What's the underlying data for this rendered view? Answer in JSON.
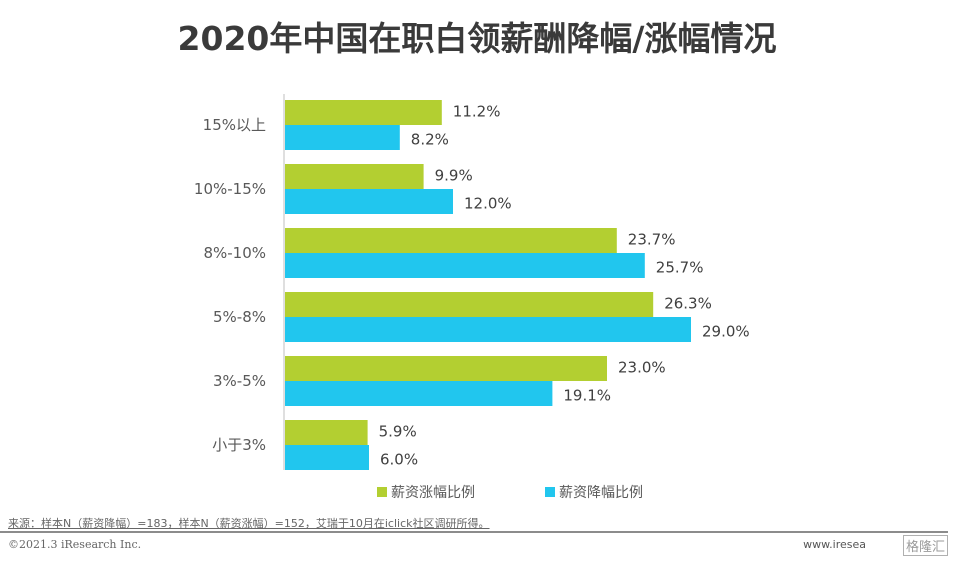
{
  "title": "2020年中国在职白领薪酬降幅/涨幅情况",
  "colors": {
    "increase": "#B3CF31",
    "decrease": "#21C6EE"
  },
  "chart_data": {
    "type": "bar",
    "orientation": "horizontal",
    "title": "2020年中国在职白领薪酬降幅/涨幅情况",
    "categories": [
      "15%以上",
      "10%-15%",
      "8%-10%",
      "5%-8%",
      "3%-5%",
      "小于3%"
    ],
    "series": [
      {
        "name": "薪资涨幅比例",
        "values": [
          11.2,
          9.9,
          23.7,
          26.3,
          23.0,
          5.9
        ],
        "labels": [
          "11.2%",
          "9.9%",
          "23.7%",
          "26.3%",
          "23.0%",
          "5.9%"
        ]
      },
      {
        "name": "薪资降幅比例",
        "values": [
          8.2,
          12.0,
          25.7,
          29.0,
          19.1,
          6.0
        ],
        "labels": [
          "8.2%",
          "12.0%",
          "25.7%",
          "29.0%",
          "19.1%",
          "6.0%"
        ]
      }
    ],
    "xlabel": "",
    "ylabel": "",
    "xlim": [
      0,
      35
    ],
    "grid": false,
    "legend": "bottom"
  },
  "legend": {
    "increase": "薪资涨幅比例",
    "decrease": "薪资降幅比例"
  },
  "footer": {
    "source": "来源：样本N（薪资降幅）=183，样本N（薪资涨幅）=152，艾瑞于10月在iclick社区调研所得。",
    "copyright": "©2021.3 iResearch Inc.",
    "website": "www.iresea",
    "watermark": "格隆汇"
  }
}
